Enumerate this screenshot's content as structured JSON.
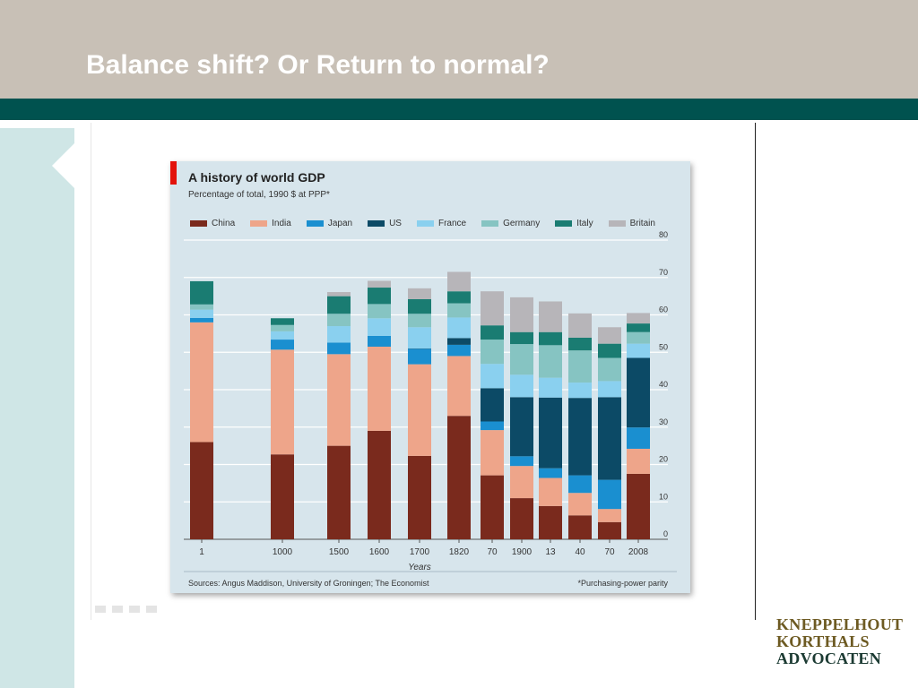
{
  "slide": {
    "title": "Balance shift? Or Return to normal?",
    "colors": {
      "header": "#c8c0b6",
      "band": "#00524f",
      "sidebar": "#cfe6e6"
    }
  },
  "logo": {
    "line1": "KNEPPELHOUT",
    "line2": "KORTHALS",
    "line3": "ADVOCATEN"
  },
  "chart_data": {
    "type": "bar",
    "stacked": true,
    "title": "A history of world GDP",
    "subtitle": "Percentage of total, 1990 $ at PPP*",
    "xlabel": "Years",
    "ylabel": "",
    "ylim": [
      0,
      80
    ],
    "yticks": [
      0,
      10,
      20,
      30,
      40,
      50,
      60,
      70,
      80
    ],
    "grid": true,
    "legend_position": "top",
    "categories": [
      "1",
      "1000",
      "1500",
      "1600",
      "1700",
      "1820",
      "70",
      "1900",
      "13",
      "40",
      "70",
      "2008"
    ],
    "series": [
      {
        "name": "China",
        "color": "#7a2a1d",
        "values": [
          26,
          22.7,
          25,
          29,
          22.3,
          33,
          17.1,
          11,
          8.9,
          6.4,
          4.6,
          17.5
        ]
      },
      {
        "name": "India",
        "color": "#eea58a",
        "values": [
          32,
          28,
          24.5,
          22.5,
          24.5,
          16,
          12.1,
          8.6,
          7.5,
          6,
          3.5,
          6.7
        ]
      },
      {
        "name": "Japan",
        "color": "#1a8fd0",
        "values": [
          1.2,
          2.7,
          3.1,
          2.9,
          4.1,
          3,
          2.3,
          2.6,
          2.6,
          4.7,
          7.8,
          5.7
        ]
      },
      {
        "name": "US",
        "color": "#0c4a66",
        "values": [
          0,
          0,
          0,
          0,
          0.1,
          1.8,
          8.9,
          15.8,
          18.9,
          20.7,
          22.1,
          18.6
        ]
      },
      {
        "name": "France",
        "color": "#8ad0ef",
        "values": [
          2.2,
          2.2,
          4.4,
          4.7,
          5.7,
          5.5,
          6.5,
          6,
          5.3,
          4.1,
          4.3,
          3.8
        ]
      },
      {
        "name": "Germany",
        "color": "#86c4c2",
        "values": [
          1.4,
          1.7,
          3.3,
          3.8,
          3.6,
          3.8,
          6.5,
          8.2,
          8.7,
          8.6,
          6.2,
          3.1
        ]
      },
      {
        "name": "Italy",
        "color": "#1a7c72",
        "values": [
          6.2,
          1.8,
          4.7,
          4.4,
          3.9,
          3.2,
          3.8,
          3.2,
          3.5,
          3.4,
          3.8,
          2.3
        ]
      },
      {
        "name": "Britain",
        "color": "#b7b5b9",
        "values": [
          0,
          0,
          1.1,
          1.8,
          2.9,
          5.2,
          9.1,
          9.3,
          8.2,
          6.5,
          4.4,
          2.8
        ]
      }
    ],
    "sources": "Sources: Angus Maddison, University of Groningen; The Economist",
    "footnote": "*Purchasing-power parity"
  }
}
